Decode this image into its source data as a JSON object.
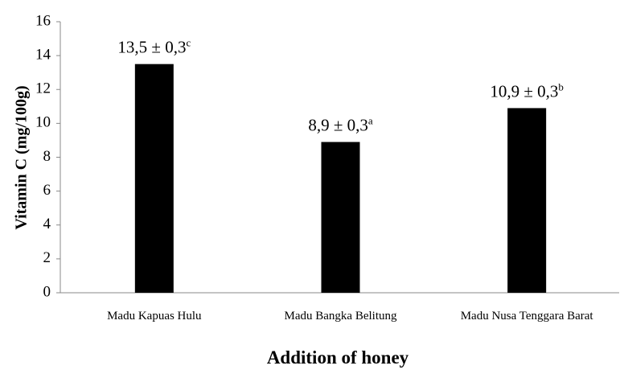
{
  "chart_data": {
    "type": "bar",
    "x_label": "Addition of honey",
    "y_label": "Vitamin C (mg/100g)",
    "categories": [
      "Madu Kapuas Hulu",
      "Madu Bangka Belitung",
      "Madu Nusa Tenggara Barat"
    ],
    "values": [
      13.5,
      8.9,
      10.9
    ],
    "value_labels": [
      "13,5 ± 0,3",
      "8,9 ± 0,3",
      "10,9 ± 0,3"
    ],
    "value_letters": [
      "c",
      "a",
      "b"
    ],
    "color": "#000000",
    "ylim": [
      0,
      16
    ],
    "yticks": [
      0,
      2,
      4,
      6,
      8,
      10,
      12,
      14,
      16
    ],
    "grid": false
  }
}
